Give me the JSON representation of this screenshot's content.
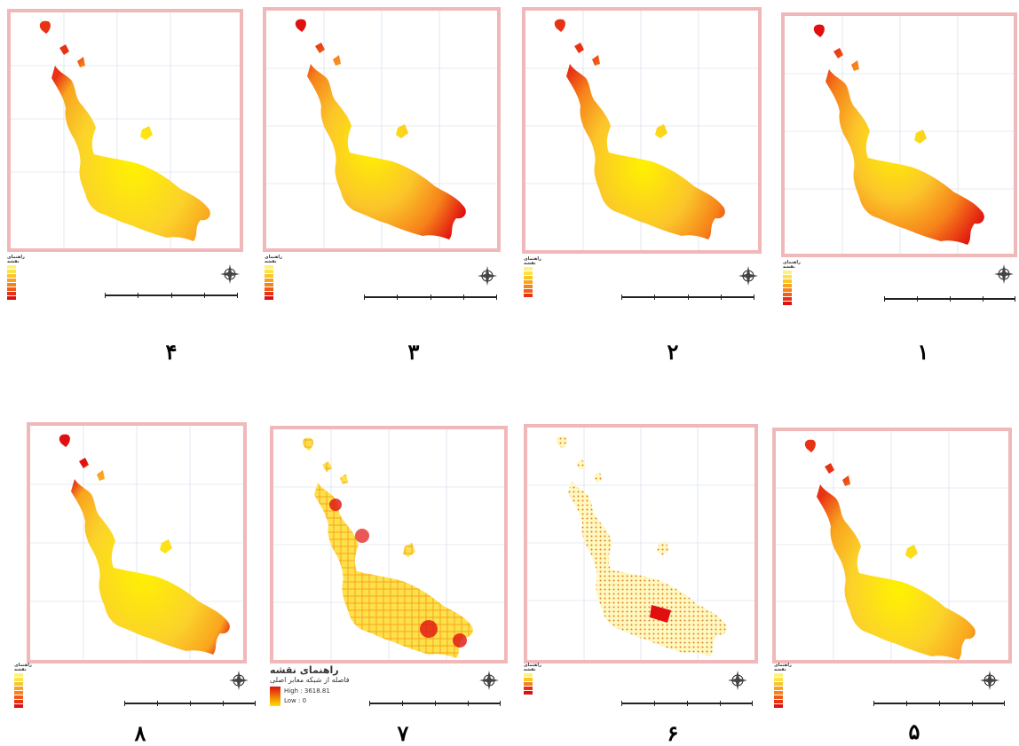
{
  "panels": [
    {
      "id": "p1",
      "number": "۱",
      "legend_title": "راهنمای نقشه"
    },
    {
      "id": "p2",
      "number": "۲",
      "legend_title": "راهنمای نقشه"
    },
    {
      "id": "p3",
      "number": "۳",
      "legend_title": "راهنمای نقشه"
    },
    {
      "id": "p4",
      "number": "۴",
      "legend_title": "راهنمای نقشه"
    },
    {
      "id": "p5",
      "number": "۵",
      "legend_title": "راهنمای نقشه"
    },
    {
      "id": "p6",
      "number": "۶",
      "legend_title": "راهنمای نقشه"
    },
    {
      "id": "p7",
      "number": "۷",
      "legend_title": "راهنمای نقشه",
      "legend_subtitle": "فاصله از شبکه معابر اصلی",
      "legend_high": "High : 3618.81",
      "legend_low": "Low : 0"
    },
    {
      "id": "p8",
      "number": "۸",
      "legend_title": "راهنمای نقشه"
    }
  ],
  "colors": {
    "frame": "#f0b8b8",
    "ramp": [
      "#fff27a",
      "#fde14a",
      "#fbc52a",
      "#f9a41e",
      "#f6821a",
      "#f15c18",
      "#e83214",
      "#e01010"
    ],
    "grid": "#cfd8e6"
  }
}
